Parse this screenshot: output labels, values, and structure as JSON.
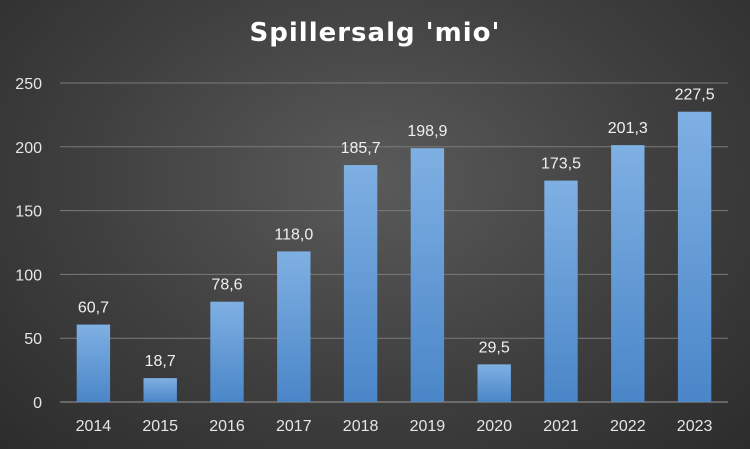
{
  "chart_data": {
    "type": "bar",
    "title": "Spillersalg 'mio'",
    "xlabel": "",
    "ylabel": "",
    "categories": [
      "2014",
      "2015",
      "2016",
      "2017",
      "2018",
      "2019",
      "2020",
      "2021",
      "2022",
      "2023"
    ],
    "values": [
      60.7,
      18.7,
      78.6,
      118.0,
      185.7,
      198.9,
      29.5,
      173.5,
      201.3,
      227.5
    ],
    "data_labels": [
      "60,7",
      "18,7",
      "78,6",
      "118,0",
      "185,7",
      "198,9",
      "29,5",
      "173,5",
      "201,3",
      "227,5"
    ],
    "y_ticks": [
      0,
      50,
      100,
      150,
      200,
      250
    ],
    "y_tick_labels": [
      "0",
      "50",
      "100",
      "150",
      "200",
      "250"
    ],
    "ylim": [
      0,
      250
    ],
    "grid": true,
    "legend": "none",
    "colors": {
      "bar_top": "#7fb0e3",
      "bar_bottom": "#4a86c8"
    }
  }
}
